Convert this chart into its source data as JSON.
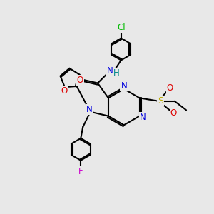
{
  "bg_color": "#e8e8e8",
  "lw": 1.5,
  "atom_colors": {
    "Cl": "#00bb00",
    "F": "#cc00cc",
    "O": "#dd0000",
    "N": "#0000dd",
    "S": "#bbaa00",
    "H": "#008888",
    "C": "#000000"
  },
  "fs": 8.5
}
